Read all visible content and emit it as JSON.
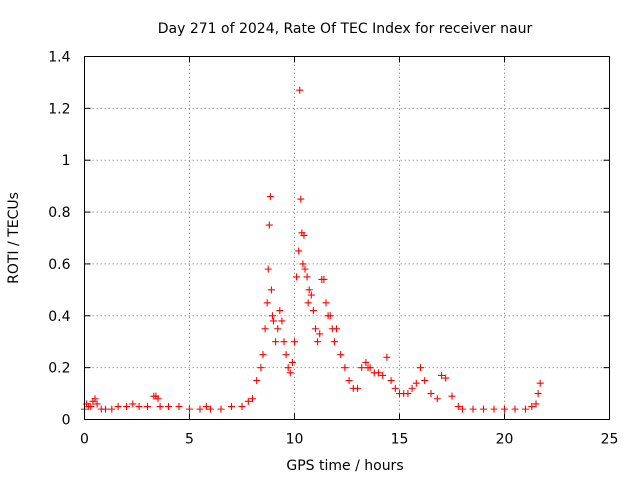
{
  "chart_data": {
    "type": "scatter",
    "title": "Day 271 of 2024, Rate Of TEC Index for receiver naur",
    "xlabel": "GPS time / hours",
    "ylabel": "ROTI / TECUs",
    "xlim": [
      0,
      25
    ],
    "ylim": [
      0,
      1.4
    ],
    "xticks": [
      0,
      5,
      10,
      15,
      20,
      25
    ],
    "xtick_labels": [
      "0",
      "5",
      "10",
      "15",
      "20",
      "25"
    ],
    "yticks": [
      0,
      0.2,
      0.4,
      0.6,
      0.8,
      1,
      1.2,
      1.4
    ],
    "ytick_labels": [
      "0",
      "0.2",
      "0.4",
      "0.6",
      "0.8",
      "1",
      "1.2",
      "1.4"
    ],
    "grid": true,
    "legend": "none",
    "marker": "plus",
    "color": "#ff0000",
    "series": [
      {
        "x": [
          0.0,
          0.1,
          0.2,
          0.3,
          0.4,
          0.5,
          0.6,
          0.8,
          1.0,
          1.3,
          1.6,
          2.0,
          2.3,
          2.6,
          3.0,
          3.3,
          3.4,
          3.5,
          3.6,
          4.0,
          4.5,
          5.0,
          5.5,
          5.8,
          6.0,
          6.5,
          7.0,
          7.5,
          7.8,
          8.0,
          8.2,
          8.4,
          8.5,
          8.6,
          8.7,
          8.75,
          8.8,
          8.85,
          8.9,
          8.95,
          9.0,
          9.1,
          9.2,
          9.3,
          9.4,
          9.5,
          9.6,
          9.7,
          9.8,
          9.9,
          10.0,
          10.1,
          10.2,
          10.25,
          10.3,
          10.35,
          10.4,
          10.45,
          10.5,
          10.6,
          10.65,
          10.7,
          10.8,
          10.9,
          11.0,
          11.1,
          11.2,
          11.3,
          11.4,
          11.5,
          11.6,
          11.7,
          11.8,
          11.9,
          12.0,
          12.2,
          12.4,
          12.6,
          12.8,
          13.0,
          13.2,
          13.4,
          13.5,
          13.6,
          13.8,
          14.0,
          14.2,
          14.4,
          14.6,
          14.8,
          15.0,
          15.2,
          15.4,
          15.6,
          15.8,
          16.0,
          16.2,
          16.5,
          16.8,
          17.0,
          17.2,
          17.5,
          17.8,
          18.0,
          18.5,
          19.0,
          19.5,
          20.0,
          20.5,
          21.0,
          21.3,
          21.5,
          21.6,
          21.7
        ],
        "y": [
          0.04,
          0.06,
          0.05,
          0.05,
          0.07,
          0.08,
          0.06,
          0.04,
          0.04,
          0.04,
          0.05,
          0.05,
          0.06,
          0.05,
          0.05,
          0.09,
          0.09,
          0.08,
          0.05,
          0.05,
          0.05,
          0.04,
          0.04,
          0.05,
          0.04,
          0.04,
          0.05,
          0.05,
          0.07,
          0.08,
          0.15,
          0.2,
          0.25,
          0.35,
          0.45,
          0.58,
          0.75,
          0.86,
          0.5,
          0.4,
          0.38,
          0.3,
          0.35,
          0.42,
          0.38,
          0.3,
          0.25,
          0.2,
          0.18,
          0.22,
          0.3,
          0.55,
          0.65,
          1.27,
          0.85,
          0.72,
          0.6,
          0.71,
          0.58,
          0.55,
          0.45,
          0.5,
          0.48,
          0.42,
          0.35,
          0.3,
          0.33,
          0.54,
          0.54,
          0.45,
          0.4,
          0.4,
          0.35,
          0.3,
          0.35,
          0.25,
          0.2,
          0.15,
          0.12,
          0.12,
          0.2,
          0.22,
          0.2,
          0.2,
          0.18,
          0.18,
          0.17,
          0.24,
          0.15,
          0.12,
          0.1,
          0.1,
          0.1,
          0.12,
          0.14,
          0.2,
          0.15,
          0.1,
          0.08,
          0.17,
          0.16,
          0.09,
          0.05,
          0.04,
          0.04,
          0.04,
          0.04,
          0.04,
          0.04,
          0.04,
          0.05,
          0.06,
          0.1,
          0.14
        ]
      }
    ]
  }
}
